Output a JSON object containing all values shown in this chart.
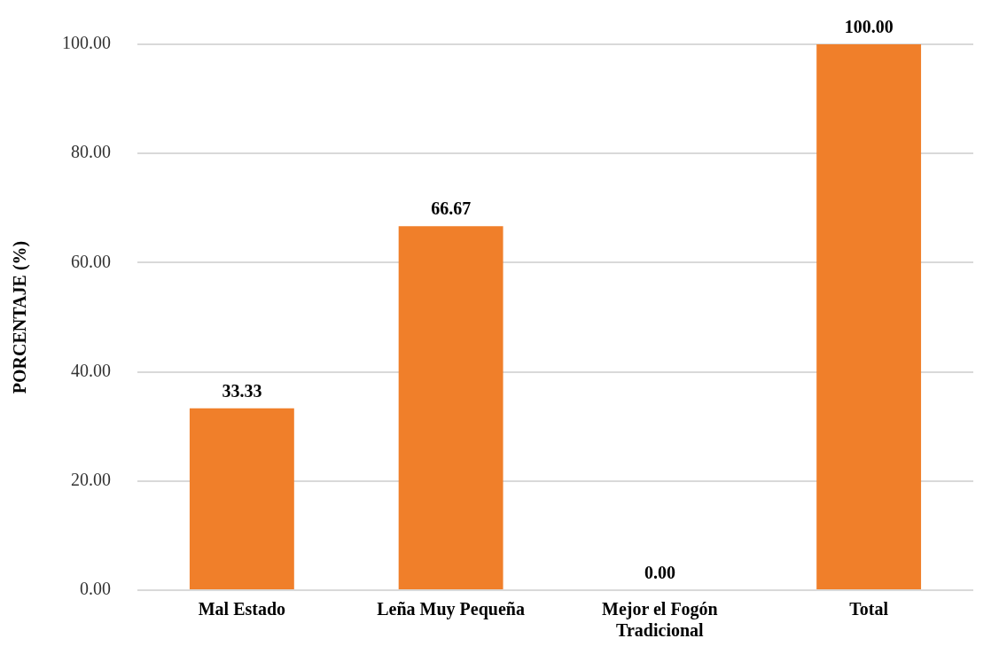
{
  "chart_data": {
    "type": "bar",
    "ylabel": "PORCENTAJE (%)",
    "categories": [
      "Mal Estado",
      "Leña Muy Pequeña",
      "Mejor el Fogón Tradicional",
      "Total"
    ],
    "values": [
      33.33,
      66.67,
      0.0,
      100.0
    ],
    "color": "#f07f2a",
    "ylim": [
      0,
      100
    ],
    "yticks": [
      {
        "value": 0,
        "label": "0.00"
      },
      {
        "value": 20,
        "label": "20.00"
      },
      {
        "value": 40,
        "label": "40.00"
      },
      {
        "value": 60,
        "label": "60.00"
      },
      {
        "value": 80,
        "label": "80.00"
      },
      {
        "value": 100,
        "label": "100.00"
      }
    ],
    "value_labels": [
      "33.33",
      "66.67",
      "0.00",
      "100.00"
    ],
    "grid": "y",
    "legend": false
  }
}
